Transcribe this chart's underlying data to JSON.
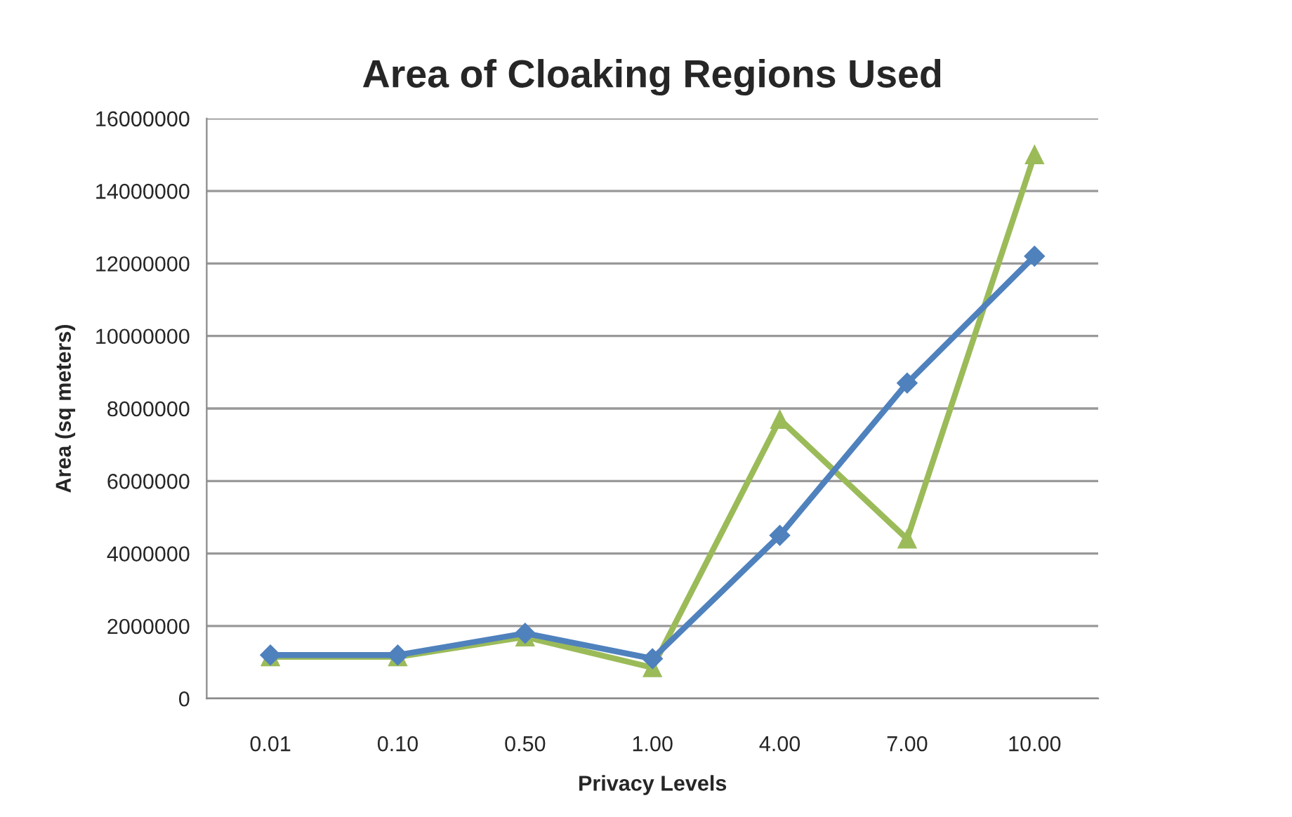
{
  "chart_data": {
    "type": "line",
    "title": "Area of Cloaking Regions Used",
    "xlabel": "Privacy Levels",
    "ylabel": "Area (sq meters)",
    "categories": [
      "0.01",
      "0.10",
      "0.50",
      "1.00",
      "4.00",
      "7.00",
      "10.00"
    ],
    "series": [
      {
        "color": "#4f81bd",
        "marker": "diamond",
        "values": [
          1200000,
          1200000,
          1800000,
          1100000,
          4500000,
          8700000,
          12200000
        ]
      },
      {
        "color": "#9bbb59",
        "marker": "triangle",
        "values": [
          1150000,
          1150000,
          1700000,
          850000,
          7700000,
          4400000,
          15000000
        ]
      }
    ],
    "ylim": [
      0,
      16000000
    ],
    "yticks": [
      0,
      2000000,
      4000000,
      6000000,
      8000000,
      10000000,
      12000000,
      14000000,
      16000000
    ],
    "grid": "y",
    "line_style": "solid"
  }
}
